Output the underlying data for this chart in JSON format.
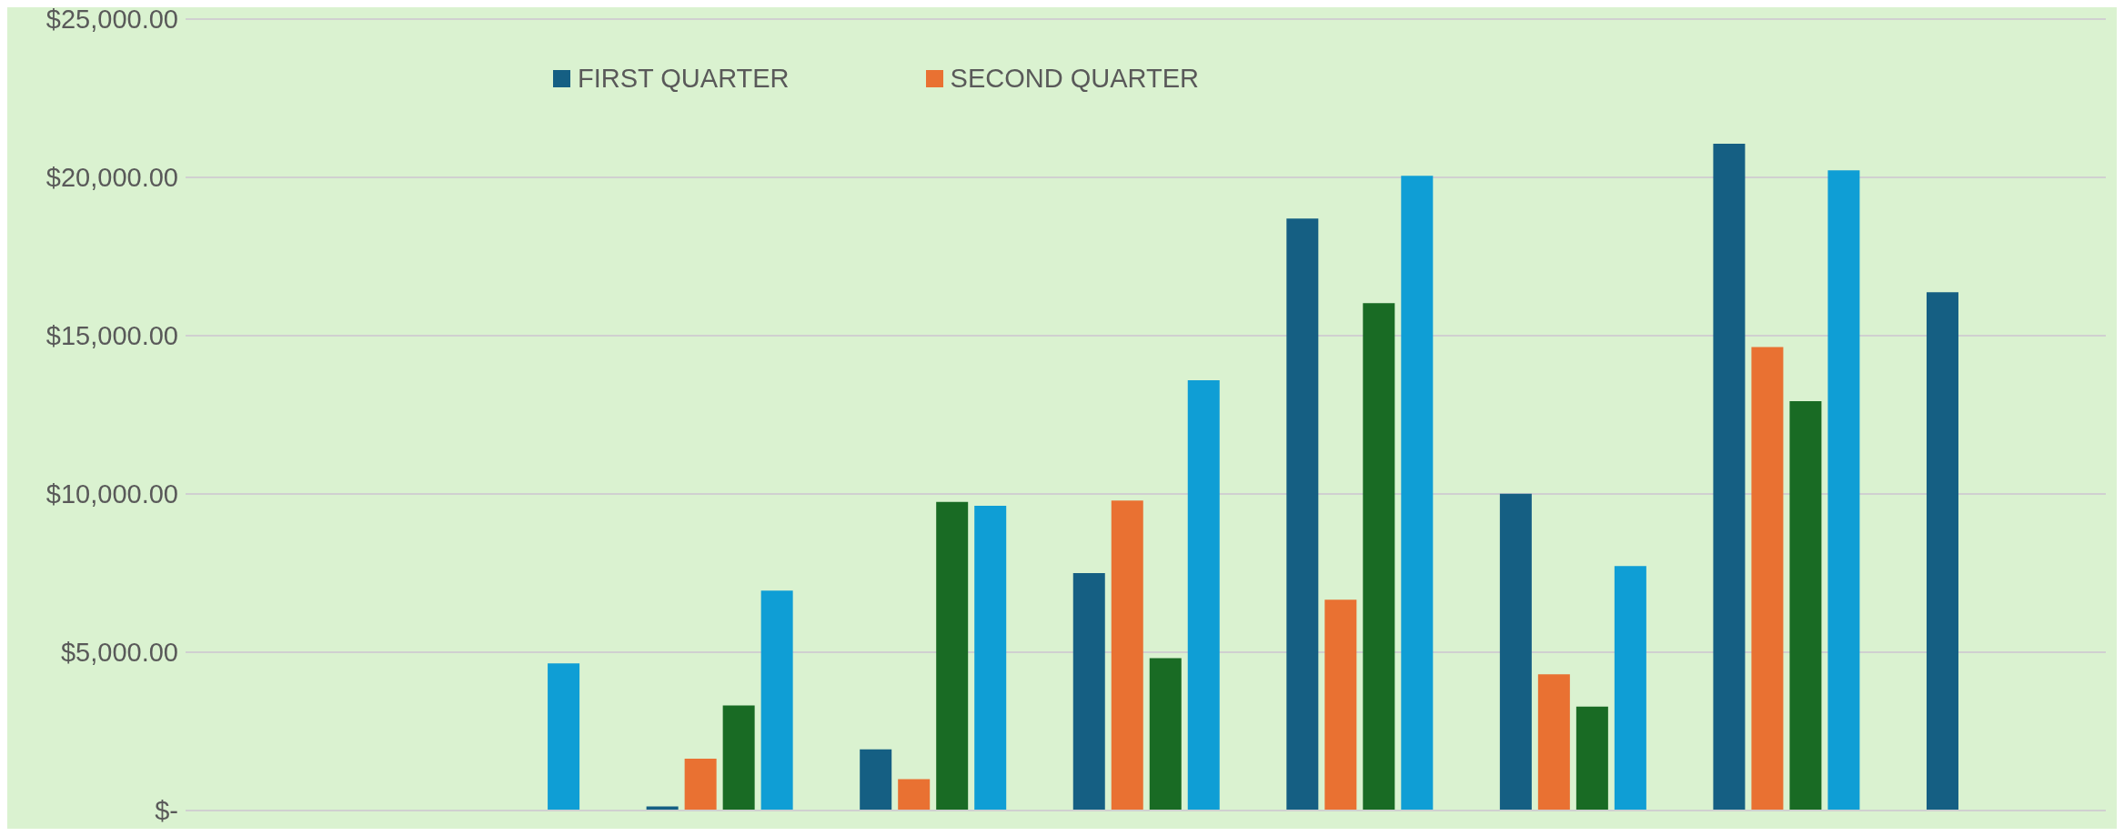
{
  "chart_data": {
    "type": "bar",
    "categories": [
      null,
      null,
      null,
      null,
      null,
      null,
      null,
      null,
      null
    ],
    "series": [
      {
        "name": "FIRST QUARTER",
        "color": "#155f83",
        "values": [
          null,
          null,
          130,
          1930,
          7500,
          18700,
          10010,
          21060,
          16370
        ]
      },
      {
        "name": "SECOND QUARTER",
        "color": "#e97132",
        "values": [
          null,
          null,
          1640,
          990,
          9790,
          6660,
          4300,
          14640,
          null
        ]
      },
      {
        "color": "#196b24",
        "values": [
          null,
          null,
          3320,
          9750,
          4810,
          16030,
          3280,
          12930,
          null
        ]
      },
      {
        "color": "#0f9ed5",
        "values": [
          null,
          4650,
          6950,
          9630,
          13590,
          20050,
          7720,
          20220,
          null
        ]
      }
    ],
    "ylim": [
      0,
      25000
    ],
    "yticks": [
      {
        "value": 0,
        "label": "$-"
      },
      {
        "value": 5000,
        "label": "$5,000.00"
      },
      {
        "value": 10000,
        "label": "$10,000.00"
      },
      {
        "value": 15000,
        "label": "$15,000.00"
      },
      {
        "value": 20000,
        "label": "$20,000.00"
      },
      {
        "value": 25000,
        "label": "$25,000.00"
      }
    ],
    "grid": "y",
    "legend": "top"
  }
}
